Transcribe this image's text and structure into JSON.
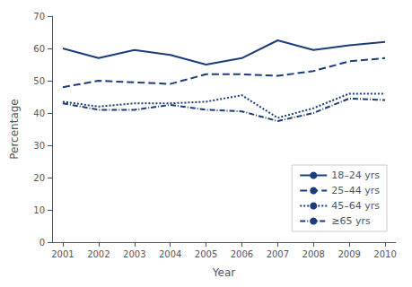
{
  "chart_data": {
    "type": "line",
    "x": [
      2001,
      2002,
      2003,
      2004,
      2005,
      2006,
      2007,
      2008,
      2009,
      2010
    ],
    "series": [
      {
        "name": "18–24 yrs",
        "line_style": "solid",
        "values": [
          60,
          57,
          59.5,
          58,
          55,
          57,
          62.5,
          59.5,
          61,
          62
        ]
      },
      {
        "name": "25–44 yrs",
        "line_style": "dashed",
        "values": [
          48,
          50,
          49.5,
          49,
          52,
          52,
          51.5,
          53,
          56,
          57
        ]
      },
      {
        "name": "45–64 yrs",
        "line_style": "dotted",
        "values": [
          43.5,
          42,
          43,
          43,
          43.5,
          45.5,
          38.5,
          41.5,
          46,
          46
        ]
      },
      {
        "name": "≥65 yrs",
        "line_style": "dashdot",
        "values": [
          43,
          41,
          41,
          42.5,
          41,
          40.5,
          37.5,
          40,
          44.5,
          44
        ]
      }
    ],
    "color": "#1a3d7c",
    "xlabel": "Year",
    "ylabel": "Percentage",
    "xlim": [
      2000.7,
      2010.3
    ],
    "xticks": [
      2001,
      2002,
      2003,
      2004,
      2005,
      2006,
      2007,
      2008,
      2009,
      2010
    ],
    "ylim": [
      0,
      70
    ],
    "yticks": [
      0,
      10,
      20,
      30,
      40,
      50,
      60,
      70
    ],
    "grid": false,
    "legend": "lower right"
  }
}
